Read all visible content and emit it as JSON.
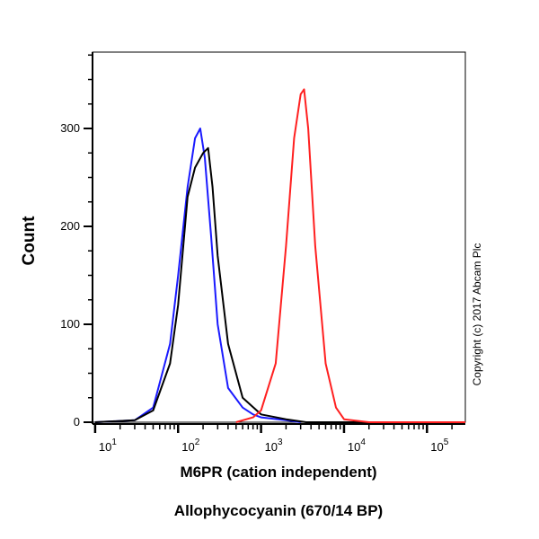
{
  "chart_data": {
    "type": "line",
    "title": "",
    "xlabel": "M6PR (cation independent)",
    "xlabel2": "Allophycocyanin (670/14 BP)",
    "ylabel": "Count",
    "xscale": "log",
    "xlim": [
      9.3,
      290000
    ],
    "ylim": [
      0,
      378
    ],
    "xticks": [
      10,
      100,
      1000,
      10000,
      100000
    ],
    "xtick_labels": [
      {
        "b": "10",
        "e": "1"
      },
      {
        "b": "10",
        "e": "2"
      },
      {
        "b": "10",
        "e": "3"
      },
      {
        "b": "10",
        "e": "4"
      },
      {
        "b": "10",
        "e": "5"
      }
    ],
    "yticks": [
      0,
      100,
      200,
      300
    ],
    "ytick_labels": [
      "0",
      "100",
      "200",
      "300"
    ],
    "grid": false,
    "annotation": "Copyright (c) 2017 Abcam Plc",
    "series": [
      {
        "color": "#1a1aff",
        "points": [
          [
            10,
            0
          ],
          [
            30,
            2
          ],
          [
            50,
            15
          ],
          [
            80,
            80
          ],
          [
            100,
            150
          ],
          [
            130,
            240
          ],
          [
            160,
            290
          ],
          [
            185,
            300
          ],
          [
            210,
            270
          ],
          [
            250,
            190
          ],
          [
            300,
            100
          ],
          [
            400,
            35
          ],
          [
            600,
            15
          ],
          [
            800,
            8
          ],
          [
            1000,
            5
          ],
          [
            2000,
            2
          ],
          [
            3000,
            0
          ]
        ]
      },
      {
        "color": "#000000",
        "points": [
          [
            10,
            0
          ],
          [
            30,
            2
          ],
          [
            50,
            12
          ],
          [
            80,
            60
          ],
          [
            100,
            120
          ],
          [
            130,
            230
          ],
          [
            160,
            260
          ],
          [
            200,
            275
          ],
          [
            230,
            280
          ],
          [
            260,
            240
          ],
          [
            300,
            170
          ],
          [
            400,
            80
          ],
          [
            600,
            25
          ],
          [
            1000,
            8
          ],
          [
            2000,
            3
          ],
          [
            3500,
            0
          ],
          [
            290000,
            0
          ]
        ]
      },
      {
        "color": "#ff2020",
        "points": [
          [
            500,
            0
          ],
          [
            800,
            5
          ],
          [
            1000,
            12
          ],
          [
            1500,
            60
          ],
          [
            2000,
            180
          ],
          [
            2500,
            290
          ],
          [
            3000,
            335
          ],
          [
            3300,
            340
          ],
          [
            3700,
            300
          ],
          [
            4500,
            180
          ],
          [
            6000,
            60
          ],
          [
            8000,
            15
          ],
          [
            10000,
            3
          ],
          [
            20000,
            0
          ],
          [
            290000,
            0
          ]
        ]
      }
    ]
  }
}
